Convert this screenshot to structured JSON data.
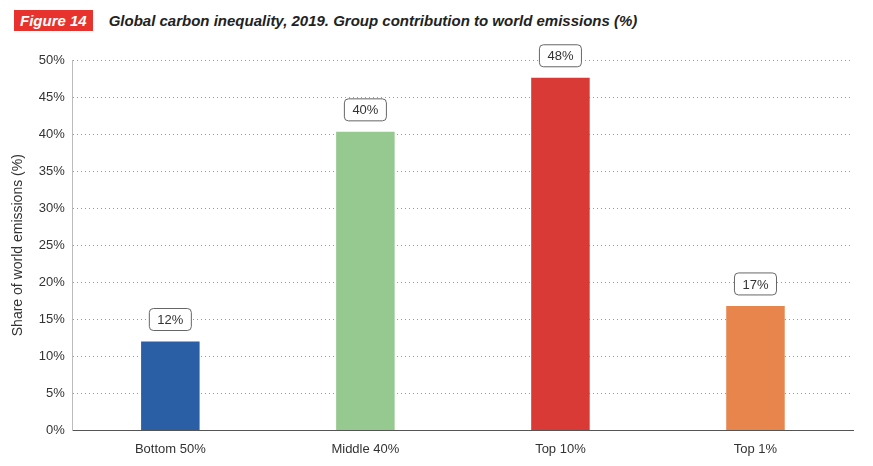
{
  "chart_data": {
    "type": "bar",
    "title": "Global carbon inequality, 2019. Group contribution to world emissions (%)",
    "annotations": [
      "Figure 14"
    ],
    "y_label": "Share of world emissions (%)",
    "categories": [
      "Bottom 50%",
      "Middle 40%",
      "Top 10%",
      "Top 1%"
    ],
    "values": [
      12,
      40.3,
      47.6,
      16.8
    ],
    "value_labels": [
      "12%",
      "40%",
      "48%",
      "17%"
    ],
    "colors": [
      "#2a5fa5",
      "#96c98f",
      "#d93a35",
      "#e8854c"
    ],
    "ylim": [
      0,
      50
    ],
    "yticks": [
      {
        "value": 0,
        "label": "0%"
      },
      {
        "value": 5,
        "label": "5%"
      },
      {
        "value": 10,
        "label": "10%"
      },
      {
        "value": 15,
        "label": "15%"
      },
      {
        "value": 20,
        "label": "20%"
      },
      {
        "value": 25,
        "label": "25%"
      },
      {
        "value": 30,
        "label": "30%"
      },
      {
        "value": 35,
        "label": "35%"
      },
      {
        "value": 40,
        "label": "40%"
      },
      {
        "value": 45,
        "label": "45%"
      },
      {
        "value": 50,
        "label": "50%"
      }
    ],
    "grid": true,
    "data_labels": true
  }
}
